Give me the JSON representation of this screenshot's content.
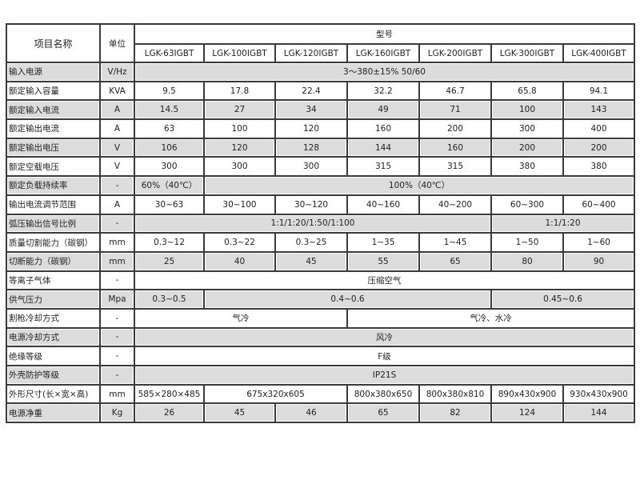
{
  "header": {
    "item_name": "项目名称",
    "unit": "单位",
    "model": "型号",
    "models": [
      "LGK-63IGBT",
      "LGK-100IGBT",
      "LGK-120IGBT",
      "LGK-160IGBT",
      "LGK-200IGBT",
      "LGK-300IGBT",
      "LGK-400IGBT"
    ]
  },
  "rows": [
    {
      "name": "输入电源",
      "unit": "V/Hz",
      "values": [
        "3～380±15% 50/60"
      ]
    },
    {
      "name": "额定输入容量",
      "unit": "KVA",
      "values": [
        "9.5",
        "17.8",
        "22.4",
        "32.2",
        "46.7",
        "65.8",
        "94.1"
      ]
    },
    {
      "name": "额定输入电流",
      "unit": "A",
      "values": [
        "14.5",
        "27",
        "34",
        "49",
        "71",
        "100",
        "143"
      ]
    },
    {
      "name": "额定输出电流",
      "unit": "A",
      "values": [
        "63",
        "100",
        "120",
        "160",
        "200",
        "300",
        "400"
      ]
    },
    {
      "name": "额定输出电压",
      "unit": "V",
      "values": [
        "106",
        "120",
        "128",
        "144",
        "160",
        "200",
        "200"
      ]
    },
    {
      "name": "额定空载电压",
      "unit": "V",
      "values": [
        "300",
        "300",
        "300",
        "315",
        "315",
        "380",
        "380"
      ]
    },
    {
      "name": "额定负载持续率",
      "unit": "-",
      "values": [
        "60%（40℃）",
        "100%（40℃）"
      ]
    },
    {
      "name": "输出电流调节范围",
      "unit": "A",
      "values": [
        "30~63",
        "30~100",
        "30~120",
        "40~160",
        "40~200",
        "60~300",
        "60~400"
      ]
    },
    {
      "name": "弧压输出信号比例",
      "unit": "-",
      "values": [
        "1:1/1:20/1:50/1:100",
        "1:1/1:20"
      ]
    },
    {
      "name": "质量切割能力（碳钢）",
      "unit": "mm",
      "values": [
        "0.3~12",
        "0.3~22",
        "0.3~25",
        "1~35",
        "1~45",
        "1~50",
        "1~60"
      ]
    },
    {
      "name": "切断能力（碳钢）",
      "unit": "mm",
      "values": [
        "25",
        "40",
        "45",
        "55",
        "65",
        "80",
        "90"
      ]
    },
    {
      "name": "等离子气体",
      "unit": "-",
      "values": [
        "压缩空气"
      ]
    },
    {
      "name": "供气压力",
      "unit": "Mpa",
      "values": [
        "0.3~0.5",
        "0.4~0.6",
        "0.45~0.6"
      ]
    },
    {
      "name": "割枪冷却方式",
      "unit": "-",
      "values": [
        "气冷",
        "气冷、水冷"
      ]
    },
    {
      "name": "电源冷却方式",
      "unit": "-",
      "values": [
        "风冷"
      ]
    },
    {
      "name": "绝缘等级",
      "unit": "-",
      "values": [
        "F级"
      ]
    },
    {
      "name": "外壳防护等级",
      "unit": "-",
      "values": [
        "IP21S"
      ]
    },
    {
      "name": "外形尺寸(长×宽×高)",
      "unit": "mm",
      "values": [
        "585×280×485",
        "675x320x605",
        "800x380x650",
        "800x380x810",
        "890x430x900",
        "930x430x900"
      ]
    },
    {
      "name": "电源净重",
      "unit": "Kg",
      "values": [
        "26",
        "45",
        "46",
        "65",
        "82",
        "124",
        "144"
      ]
    }
  ]
}
